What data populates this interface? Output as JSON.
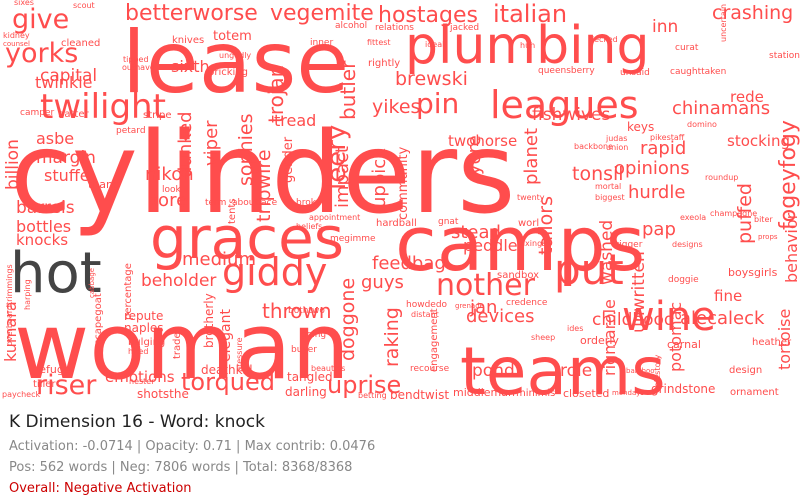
{
  "title": "K Dimension 16 - Word: knock",
  "stats_line": "Activation: -0.0714 | Opacity: 0.71 | Max contrib: 0.0476",
  "counts_line": "Pos: 562 words | Neg: 7806 words | Total: 8368/8368",
  "overall": "Overall: Negative Activation",
  "colors": {
    "negative_word": "#ff4d4d",
    "positive_word": "#444444",
    "overall_text": "#cc0000",
    "meta_text": "#888888"
  },
  "words": [
    {
      "text": "cylinders",
      "polarity": "negative"
    },
    {
      "text": "woman",
      "polarity": "negative"
    },
    {
      "text": "lease",
      "polarity": "negative"
    },
    {
      "text": "camps",
      "polarity": "negative"
    },
    {
      "text": "plumbing",
      "polarity": "negative"
    },
    {
      "text": "teams",
      "polarity": "negative"
    },
    {
      "text": "graces",
      "polarity": "negative"
    },
    {
      "text": "hot",
      "polarity": "positive"
    },
    {
      "text": "leagues",
      "polarity": "negative"
    },
    {
      "text": "put",
      "polarity": "negative"
    },
    {
      "text": "wine",
      "polarity": "negative"
    },
    {
      "text": "giddy",
      "polarity": "negative"
    },
    {
      "text": "nother",
      "polarity": "negative"
    },
    {
      "text": "twilight",
      "polarity": "negative"
    },
    {
      "text": "yorks",
      "polarity": "negative"
    },
    {
      "text": "give",
      "polarity": "negative"
    },
    {
      "text": "riser",
      "polarity": "negative"
    },
    {
      "text": "torqued",
      "polarity": "negative"
    },
    {
      "text": "uprise",
      "polarity": "negative"
    },
    {
      "text": "italian",
      "polarity": "negative"
    },
    {
      "text": "hostages",
      "polarity": "negative"
    },
    {
      "text": "vegemite",
      "polarity": "negative"
    },
    {
      "text": "betterworse",
      "polarity": "negative"
    },
    {
      "text": "crashing",
      "polarity": "negative"
    },
    {
      "text": "pin",
      "polarity": "negative"
    },
    {
      "text": "leery",
      "polarity": "negative"
    },
    {
      "text": "brewski",
      "polarity": "negative"
    },
    {
      "text": "yikes",
      "polarity": "negative"
    },
    {
      "text": "butler",
      "polarity": "negative"
    },
    {
      "text": "trojan",
      "polarity": "negative"
    },
    {
      "text": "twinkle",
      "polarity": "negative"
    },
    {
      "text": "capital",
      "polarity": "negative"
    },
    {
      "text": "sixth",
      "polarity": "negative"
    },
    {
      "text": "inn",
      "polarity": "negative"
    },
    {
      "text": "chinamans",
      "polarity": "negative"
    },
    {
      "text": "fogeyfogy",
      "polarity": "negative"
    },
    {
      "text": "rede",
      "polarity": "negative"
    },
    {
      "text": "fishwives",
      "polarity": "negative"
    },
    {
      "text": "twohorse",
      "polarity": "negative"
    },
    {
      "text": "tread",
      "polarity": "negative"
    },
    {
      "text": "sophies",
      "polarity": "negative"
    },
    {
      "text": "viper",
      "polarity": "negative"
    },
    {
      "text": "dunked",
      "polarity": "negative"
    },
    {
      "text": "tripwire",
      "polarity": "negative"
    },
    {
      "text": "impact",
      "polarity": "negative"
    },
    {
      "text": "uppick",
      "polarity": "negative"
    },
    {
      "text": "planet",
      "polarity": "negative"
    },
    {
      "text": "yore",
      "polarity": "negative"
    },
    {
      "text": "tonsil",
      "polarity": "negative"
    },
    {
      "text": "rapid",
      "polarity": "negative"
    },
    {
      "text": "opinions",
      "polarity": "negative"
    },
    {
      "text": "stocking",
      "polarity": "negative"
    },
    {
      "text": "hurdle",
      "polarity": "negative"
    },
    {
      "text": "margin",
      "polarity": "negative"
    },
    {
      "text": "asbe",
      "polarity": "negative"
    },
    {
      "text": "stuffe",
      "polarity": "negative"
    },
    {
      "text": "billion",
      "polarity": "negative"
    },
    {
      "text": "nikon",
      "polarity": "negative"
    },
    {
      "text": "barrels",
      "polarity": "negative"
    },
    {
      "text": "tore",
      "polarity": "negative"
    },
    {
      "text": "bottles",
      "polarity": "negative"
    },
    {
      "text": "knocks",
      "polarity": "negative"
    },
    {
      "text": "stead",
      "polarity": "negative"
    },
    {
      "text": "peddle",
      "polarity": "negative"
    },
    {
      "text": "tailors",
      "polarity": "negative"
    },
    {
      "text": "washed",
      "polarity": "negative"
    },
    {
      "text": "puffed",
      "polarity": "negative"
    },
    {
      "text": "pap",
      "polarity": "negative"
    },
    {
      "text": "behavior",
      "polarity": "negative"
    },
    {
      "text": "feedbag",
      "polarity": "negative"
    },
    {
      "text": "guys",
      "polarity": "negative"
    },
    {
      "text": "medium",
      "polarity": "negative"
    },
    {
      "text": "beholder",
      "polarity": "negative"
    },
    {
      "text": "jan",
      "polarity": "negative"
    },
    {
      "text": "devices",
      "polarity": "negative"
    },
    {
      "text": "childhood",
      "polarity": "negative"
    },
    {
      "text": "unwritten",
      "polarity": "negative"
    },
    {
      "text": "fine",
      "polarity": "negative"
    },
    {
      "text": "alecaleck",
      "polarity": "negative"
    },
    {
      "text": "thrown",
      "polarity": "negative"
    },
    {
      "text": "doggone",
      "polarity": "negative"
    },
    {
      "text": "raking",
      "polarity": "negative"
    },
    {
      "text": "pond",
      "polarity": "negative"
    },
    {
      "text": "role",
      "polarity": "negative"
    },
    {
      "text": "rigmarole",
      "polarity": "negative"
    },
    {
      "text": "potomac",
      "polarity": "negative"
    },
    {
      "text": "tortoise",
      "polarity": "negative"
    },
    {
      "text": "kumara",
      "polarity": "negative"
    },
    {
      "text": "emotions",
      "polarity": "negative"
    },
    {
      "text": "elegant",
      "polarity": "negative"
    },
    {
      "text": "tangled",
      "polarity": "negative"
    },
    {
      "text": "darling",
      "polarity": "negative"
    },
    {
      "text": "bendtwist",
      "polarity": "negative"
    },
    {
      "text": "middleman",
      "polarity": "negative"
    },
    {
      "text": "minimis",
      "polarity": "negative"
    },
    {
      "text": "closeted",
      "polarity": "negative"
    },
    {
      "text": "grindstone",
      "polarity": "negative"
    },
    {
      "text": "ornament",
      "polarity": "negative"
    },
    {
      "text": "design",
      "polarity": "negative"
    },
    {
      "text": "heather",
      "polarity": "negative"
    },
    {
      "text": "carnal",
      "polarity": "negative"
    },
    {
      "text": "orderly",
      "polarity": "negative"
    },
    {
      "text": "naples",
      "polarity": "negative"
    },
    {
      "text": "repute",
      "polarity": "negative"
    },
    {
      "text": "brotherly",
      "polarity": "negative"
    },
    {
      "text": "deathkill",
      "polarity": "negative"
    },
    {
      "text": "shotsthe",
      "polarity": "negative"
    },
    {
      "text": "refuge",
      "polarity": "negative"
    },
    {
      "text": "keys",
      "polarity": "negative"
    },
    {
      "text": "sixes",
      "polarity": "negative"
    },
    {
      "text": "scout",
      "polarity": "negative"
    },
    {
      "text": "totem",
      "polarity": "negative"
    },
    {
      "text": "knives",
      "polarity": "negative"
    },
    {
      "text": "ungodly",
      "polarity": "negative"
    },
    {
      "text": "alcohol",
      "polarity": "negative"
    },
    {
      "text": "relations",
      "polarity": "negative"
    },
    {
      "text": "jacked",
      "polarity": "negative"
    },
    {
      "text": "decked",
      "polarity": "negative"
    },
    {
      "text": "curat",
      "polarity": "negative"
    },
    {
      "text": "station",
      "polarity": "negative"
    },
    {
      "text": "uncertain",
      "polarity": "negative"
    },
    {
      "text": "bricking",
      "polarity": "negative"
    },
    {
      "text": "inner",
      "polarity": "negative"
    },
    {
      "text": "fittest",
      "polarity": "negative"
    },
    {
      "text": "ideal",
      "polarity": "negative"
    },
    {
      "text": "huh",
      "polarity": "negative"
    },
    {
      "text": "cleaned",
      "polarity": "negative"
    },
    {
      "text": "kidney",
      "polarity": "negative"
    },
    {
      "text": "counsel",
      "polarity": "negative"
    },
    {
      "text": "tipped",
      "polarity": "negative"
    },
    {
      "text": "outhave",
      "polarity": "negative"
    },
    {
      "text": "rightly",
      "polarity": "negative"
    },
    {
      "text": "queensberry",
      "polarity": "negative"
    },
    {
      "text": "unsaid",
      "polarity": "negative"
    },
    {
      "text": "caughttaken",
      "polarity": "negative"
    },
    {
      "text": "batter",
      "polarity": "negative"
    },
    {
      "text": "camper",
      "polarity": "negative"
    },
    {
      "text": "stripe",
      "polarity": "negative"
    },
    {
      "text": "petard",
      "polarity": "negative"
    },
    {
      "text": "gender",
      "polarity": "negative"
    },
    {
      "text": "community",
      "polarity": "negative"
    },
    {
      "text": "backbone",
      "polarity": "negative"
    },
    {
      "text": "pikestaff",
      "polarity": "negative"
    },
    {
      "text": "domino",
      "polarity": "negative"
    },
    {
      "text": "judas",
      "polarity": "negative"
    },
    {
      "text": "union",
      "polarity": "negative"
    },
    {
      "text": "thang",
      "polarity": "negative"
    },
    {
      "text": "look",
      "polarity": "negative"
    },
    {
      "text": "term",
      "polarity": "negative"
    },
    {
      "text": "aboutface",
      "polarity": "negative"
    },
    {
      "text": "broker",
      "polarity": "negative"
    },
    {
      "text": "appointment",
      "polarity": "negative"
    },
    {
      "text": "hardball",
      "polarity": "negative"
    },
    {
      "text": "gnat",
      "polarity": "negative"
    },
    {
      "text": "worl",
      "polarity": "negative"
    },
    {
      "text": "twenty",
      "polarity": "negative"
    },
    {
      "text": "mortal",
      "polarity": "negative"
    },
    {
      "text": "biggest",
      "polarity": "negative"
    },
    {
      "text": "roundup",
      "polarity": "negative"
    },
    {
      "text": "biter",
      "polarity": "negative"
    },
    {
      "text": "tents",
      "polarity": "negative"
    },
    {
      "text": "megimme",
      "polarity": "negative"
    },
    {
      "text": "beliefs",
      "polarity": "negative"
    },
    {
      "text": "trigger",
      "polarity": "negative"
    },
    {
      "text": "designs",
      "polarity": "negative"
    },
    {
      "text": "doggie",
      "polarity": "negative"
    },
    {
      "text": "boysgirls",
      "polarity": "negative"
    },
    {
      "text": "sandbox",
      "polarity": "negative"
    },
    {
      "text": "howdedo",
      "polarity": "negative"
    },
    {
      "text": "bothtwo",
      "polarity": "negative"
    },
    {
      "text": "credence",
      "polarity": "negative"
    },
    {
      "text": "distant",
      "polarity": "negative"
    },
    {
      "text": "grenade",
      "polarity": "negative"
    },
    {
      "text": "fixings",
      "polarity": "negative"
    },
    {
      "text": "percentage",
      "polarity": "negative"
    },
    {
      "text": "scapegoat",
      "polarity": "negative"
    },
    {
      "text": "bulging",
      "polarity": "negative"
    },
    {
      "text": "hired",
      "polarity": "negative"
    },
    {
      "text": "trades",
      "polarity": "negative"
    },
    {
      "text": "going",
      "polarity": "negative"
    },
    {
      "text": "buyer",
      "polarity": "negative"
    },
    {
      "text": "engagement",
      "polarity": "negative"
    },
    {
      "text": "sheep",
      "polarity": "negative"
    },
    {
      "text": "ides",
      "polarity": "negative"
    },
    {
      "text": "pressure",
      "polarity": "negative"
    },
    {
      "text": "recourse",
      "polarity": "negative"
    },
    {
      "text": "talestory",
      "polarity": "negative"
    },
    {
      "text": "bamboo",
      "polarity": "negative"
    },
    {
      "text": "beauties",
      "polarity": "negative"
    },
    {
      "text": "nester",
      "polarity": "negative"
    },
    {
      "text": "tiller",
      "polarity": "negative"
    },
    {
      "text": "paycheck",
      "polarity": "negative"
    },
    {
      "text": "betting",
      "polarity": "negative"
    },
    {
      "text": "mondays",
      "polarity": "negative"
    },
    {
      "text": "overboardtrimmings",
      "polarity": "negative"
    },
    {
      "text": "harping",
      "polarity": "negative"
    },
    {
      "text": "cabbage",
      "polarity": "negative"
    },
    {
      "text": "champagne",
      "polarity": "negative"
    },
    {
      "text": "props",
      "polarity": "negative"
    },
    {
      "text": "exeola",
      "polarity": "negative"
    }
  ]
}
